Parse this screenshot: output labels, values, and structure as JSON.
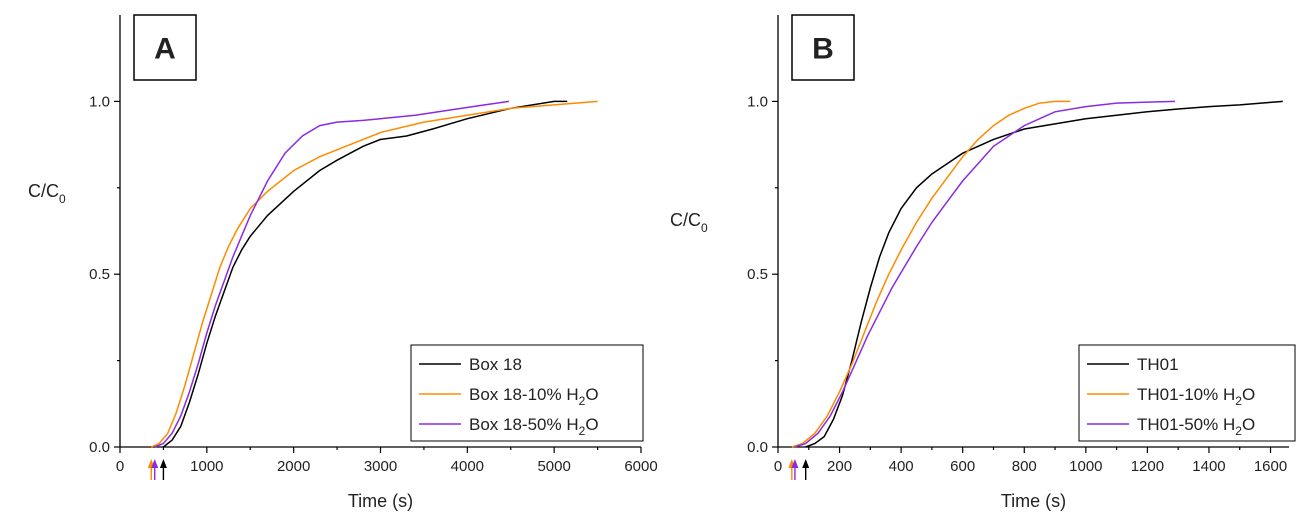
{
  "chart_data": [
    {
      "type": "line",
      "panel_label": "A",
      "xlabel": "Time (s)",
      "ylabel": "C/C",
      "ylabel_sub": "0",
      "xlim": [
        0,
        6000
      ],
      "ylim": [
        0,
        1.25
      ],
      "xticks": [
        0,
        1000,
        2000,
        3000,
        4000,
        5000,
        6000
      ],
      "yticks": [
        0.0,
        0.5,
        1.0
      ],
      "ytick_labels": [
        "0.0",
        "0.5",
        "1.0"
      ],
      "legend_position": "bottom-right",
      "markers": [
        {
          "x": 360,
          "color": "#ff8a00"
        },
        {
          "x": 400,
          "color": "#8a2be2"
        },
        {
          "x": 500,
          "color": "#000000"
        }
      ],
      "series": [
        {
          "name": "Box 18",
          "color": "#000000",
          "x": [
            500,
            600,
            700,
            800,
            900,
            1000,
            1100,
            1200,
            1300,
            1400,
            1500,
            1700,
            2000,
            2300,
            2500,
            2800,
            3000,
            3300,
            3600,
            4000,
            4500,
            5000,
            5150
          ],
          "y": [
            0.0,
            0.02,
            0.06,
            0.13,
            0.21,
            0.3,
            0.38,
            0.45,
            0.52,
            0.57,
            0.61,
            0.67,
            0.74,
            0.8,
            0.83,
            0.87,
            0.89,
            0.9,
            0.92,
            0.95,
            0.98,
            1.0,
            1.0
          ]
        },
        {
          "name": "Box 18-10% H",
          "name_sub": "2",
          "name_suffix": "O",
          "color": "#ff8a00",
          "x": [
            360,
            450,
            550,
            650,
            750,
            850,
            950,
            1050,
            1150,
            1250,
            1350,
            1500,
            1700,
            2000,
            2300,
            2600,
            3000,
            3500,
            4000,
            4500,
            5000,
            5500
          ],
          "y": [
            0.0,
            0.01,
            0.04,
            0.1,
            0.18,
            0.27,
            0.36,
            0.44,
            0.52,
            0.58,
            0.63,
            0.69,
            0.74,
            0.8,
            0.84,
            0.87,
            0.91,
            0.94,
            0.96,
            0.98,
            0.99,
            1.0
          ]
        },
        {
          "name": "Box 18-50% H",
          "name_sub": "2",
          "name_suffix": "O",
          "color": "#8a2be2",
          "x": [
            400,
            500,
            600,
            700,
            800,
            900,
            1000,
            1100,
            1200,
            1300,
            1400,
            1500,
            1700,
            1900,
            2100,
            2300,
            2500,
            2800,
            3000,
            3400,
            3800,
            4200,
            4480
          ],
          "y": [
            0.0,
            0.01,
            0.04,
            0.09,
            0.16,
            0.24,
            0.33,
            0.41,
            0.48,
            0.55,
            0.61,
            0.67,
            0.77,
            0.85,
            0.9,
            0.93,
            0.94,
            0.945,
            0.95,
            0.96,
            0.975,
            0.99,
            1.0
          ]
        }
      ]
    },
    {
      "type": "line",
      "panel_label": "B",
      "xlabel": "Time (s)",
      "ylabel": "C/C",
      "ylabel_sub": "0",
      "xlim": [
        0,
        1660
      ],
      "ylim": [
        0,
        1.25
      ],
      "xticks": [
        0,
        200,
        400,
        600,
        800,
        1000,
        1200,
        1400,
        1600
      ],
      "yticks": [
        0.0,
        0.5,
        1.0
      ],
      "ytick_labels": [
        "0.0",
        "0.5",
        "1.0"
      ],
      "legend_position": "bottom-right",
      "markers": [
        {
          "x": 45,
          "color": "#ff8a00"
        },
        {
          "x": 55,
          "color": "#8a2be2"
        },
        {
          "x": 90,
          "color": "#000000"
        }
      ],
      "series": [
        {
          "name": "TH01",
          "color": "#000000",
          "x": [
            90,
            120,
            150,
            180,
            210,
            240,
            270,
            300,
            330,
            360,
            400,
            450,
            500,
            550,
            600,
            700,
            800,
            900,
            1000,
            1100,
            1200,
            1300,
            1400,
            1500,
            1600,
            1640
          ],
          "y": [
            0.0,
            0.01,
            0.03,
            0.08,
            0.15,
            0.25,
            0.36,
            0.46,
            0.55,
            0.62,
            0.69,
            0.75,
            0.79,
            0.82,
            0.85,
            0.89,
            0.92,
            0.935,
            0.95,
            0.96,
            0.97,
            0.978,
            0.985,
            0.99,
            0.997,
            1.0
          ]
        },
        {
          "name": "TH01-10% H",
          "name_sub": "2",
          "name_suffix": "O",
          "color": "#ff8a00",
          "x": [
            45,
            80,
            120,
            160,
            200,
            240,
            280,
            320,
            360,
            400,
            450,
            500,
            550,
            600,
            650,
            700,
            750,
            800,
            850,
            900,
            950
          ],
          "y": [
            0.0,
            0.01,
            0.04,
            0.09,
            0.16,
            0.24,
            0.33,
            0.42,
            0.5,
            0.57,
            0.65,
            0.72,
            0.78,
            0.84,
            0.89,
            0.93,
            0.96,
            0.98,
            0.995,
            1.0,
            1.0
          ]
        },
        {
          "name": "TH01-50% H",
          "name_sub": "2",
          "name_suffix": "O",
          "color": "#8a2be2",
          "x": [
            55,
            90,
            130,
            170,
            210,
            250,
            290,
            330,
            370,
            410,
            450,
            500,
            550,
            600,
            650,
            700,
            750,
            800,
            850,
            900,
            1000,
            1100,
            1200,
            1290
          ],
          "y": [
            0.0,
            0.01,
            0.04,
            0.09,
            0.16,
            0.24,
            0.32,
            0.39,
            0.46,
            0.52,
            0.58,
            0.65,
            0.71,
            0.77,
            0.82,
            0.87,
            0.9,
            0.93,
            0.95,
            0.97,
            0.985,
            0.995,
            0.998,
            1.0
          ]
        }
      ]
    }
  ]
}
